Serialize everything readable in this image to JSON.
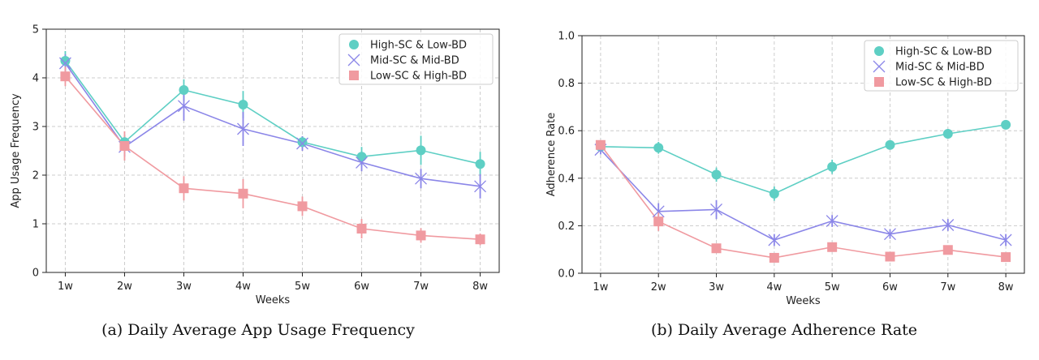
{
  "colors": {
    "high_sc_low_bd": "#5ecfc4",
    "mid_sc_mid_bd": "#8b86e8",
    "low_sc_high_bd": "#f09aa0",
    "grid": "#cccccc",
    "axis": "#222222"
  },
  "chart_data": [
    {
      "id": "a",
      "type": "line",
      "caption": "(a) Daily Average App Usage Frequency",
      "xlabel": "Weeks",
      "ylabel": "App Usage Frequency",
      "categories": [
        "1w",
        "2w",
        "3w",
        "4w",
        "5w",
        "6w",
        "7w",
        "8w"
      ],
      "ylim": [
        0,
        5
      ],
      "yticks": [
        0,
        1,
        2,
        3,
        4,
        5
      ],
      "ytick_labels": [
        "0",
        "1",
        "2",
        "3",
        "4",
        "5"
      ],
      "grid": true,
      "legend_position": "top-right",
      "series": [
        {
          "name": "High-SC & Low-BD",
          "marker": "circle",
          "color_key": "high_sc_low_bd",
          "values": [
            4.35,
            2.68,
            3.75,
            3.45,
            2.68,
            2.38,
            2.51,
            2.23
          ],
          "errors": [
            0.2,
            0.15,
            0.22,
            0.28,
            0.12,
            0.2,
            0.3,
            0.25
          ]
        },
        {
          "name": "Mid-SC & Mid-BD",
          "marker": "x",
          "color_key": "mid_sc_mid_bd",
          "values": [
            4.3,
            2.58,
            3.42,
            2.95,
            2.65,
            2.26,
            1.93,
            1.77
          ],
          "errors": [
            0.18,
            0.2,
            0.3,
            0.35,
            0.15,
            0.18,
            0.2,
            0.25
          ]
        },
        {
          "name": "Low-SC & High-BD",
          "marker": "square",
          "color_key": "low_sc_high_bd",
          "values": [
            4.03,
            2.6,
            1.73,
            1.62,
            1.36,
            0.9,
            0.76,
            0.68
          ],
          "errors": [
            0.2,
            0.3,
            0.25,
            0.3,
            0.2,
            0.2,
            0.15,
            0.12
          ]
        }
      ]
    },
    {
      "id": "b",
      "type": "line",
      "caption": "(b) Daily Average Adherence Rate",
      "xlabel": "Weeks",
      "ylabel": "Adherence Rate",
      "categories": [
        "1w",
        "2w",
        "3w",
        "4w",
        "5w",
        "6w",
        "7w",
        "8w"
      ],
      "ylim": [
        0,
        1.0
      ],
      "yticks": [
        0,
        0.2,
        0.4,
        0.6,
        0.8,
        1.0
      ],
      "ytick_labels": [
        "0.0",
        "0.2",
        "0.4",
        "0.6",
        "0.8",
        "1.0"
      ],
      "grid": true,
      "legend_position": "top-right",
      "series": [
        {
          "name": "High-SC & Low-BD",
          "marker": "circle",
          "color_key": "high_sc_low_bd",
          "values": [
            0.533,
            0.528,
            0.415,
            0.335,
            0.448,
            0.54,
            0.587,
            0.625
          ],
          "errors": [
            0.015,
            0.025,
            0.03,
            0.03,
            0.03,
            0.02,
            0.02,
            0.015
          ]
        },
        {
          "name": "Mid-SC & Mid-BD",
          "marker": "x",
          "color_key": "mid_sc_mid_bd",
          "values": [
            0.52,
            0.26,
            0.268,
            0.14,
            0.22,
            0.165,
            0.203,
            0.14
          ],
          "errors": [
            0.02,
            0.035,
            0.04,
            0.025,
            0.025,
            0.02,
            0.025,
            0.025
          ]
        },
        {
          "name": "Low-SC & High-BD",
          "marker": "square",
          "color_key": "low_sc_high_bd",
          "values": [
            0.54,
            0.218,
            0.105,
            0.065,
            0.11,
            0.07,
            0.098,
            0.068
          ],
          "errors": [
            0.02,
            0.04,
            0.02,
            0.015,
            0.015,
            0.015,
            0.015,
            0.012
          ]
        }
      ]
    }
  ]
}
